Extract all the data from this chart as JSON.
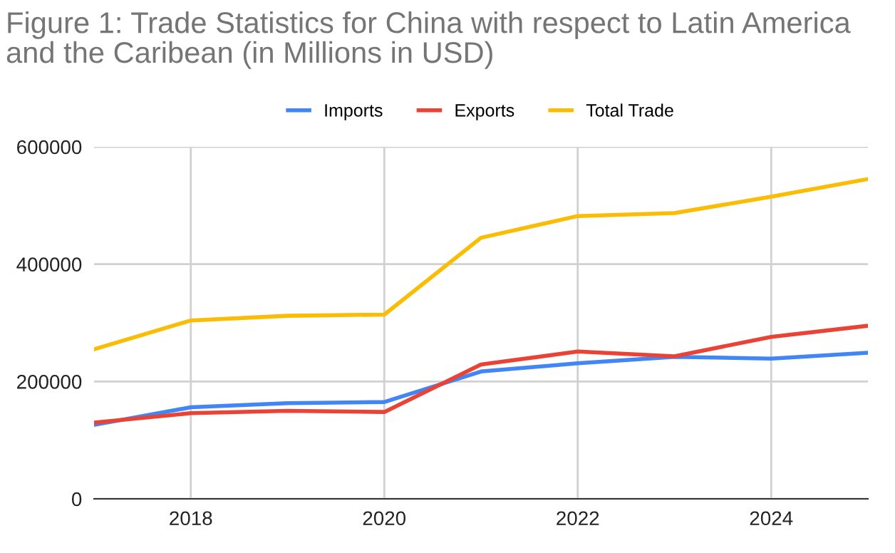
{
  "chart_data": {
    "type": "line",
    "title": "Figure 1: Trade Statistics for China with respect to Latin America\nand the Caribean (in Millions in USD)",
    "x": [
      2017,
      2018,
      2019,
      2020,
      2021,
      2022,
      2023,
      2024,
      2025
    ],
    "series": [
      {
        "name": "Imports",
        "color": "#4285f4",
        "values": [
          126000,
          156000,
          163000,
          165000,
          217000,
          231000,
          242000,
          239000,
          249000
        ]
      },
      {
        "name": "Exports",
        "color": "#ea4335",
        "values": [
          130000,
          146000,
          150000,
          148000,
          229000,
          251000,
          243000,
          276000,
          295000
        ]
      },
      {
        "name": "Total Trade",
        "color": "#fbbc04",
        "values": [
          255000,
          304000,
          312000,
          314000,
          445000,
          482000,
          487000,
          515000,
          545000
        ]
      }
    ],
    "xlim": [
      2017,
      2025
    ],
    "xticks": [
      2018,
      2020,
      2022,
      2024
    ],
    "ylim": [
      0,
      600000
    ],
    "yticks": [
      0,
      200000,
      400000,
      600000
    ],
    "grid": true,
    "legend": "top",
    "marker": "none",
    "line_style": "solid"
  }
}
